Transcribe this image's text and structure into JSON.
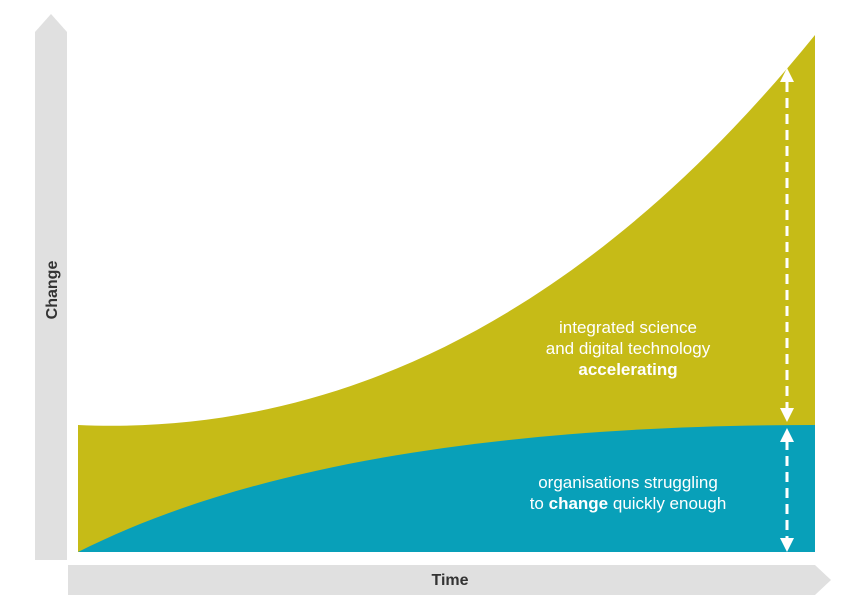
{
  "axes": {
    "y_label": "Change",
    "x_label": "Time"
  },
  "upper_label": {
    "line1": "integrated science",
    "line2": "and digital technology",
    "line3": "accelerating"
  },
  "lower_label": {
    "line1": "organisations struggling",
    "line2": {
      "before": "to",
      "emphasis": "change",
      "after": "quickly enough"
    }
  }
}
